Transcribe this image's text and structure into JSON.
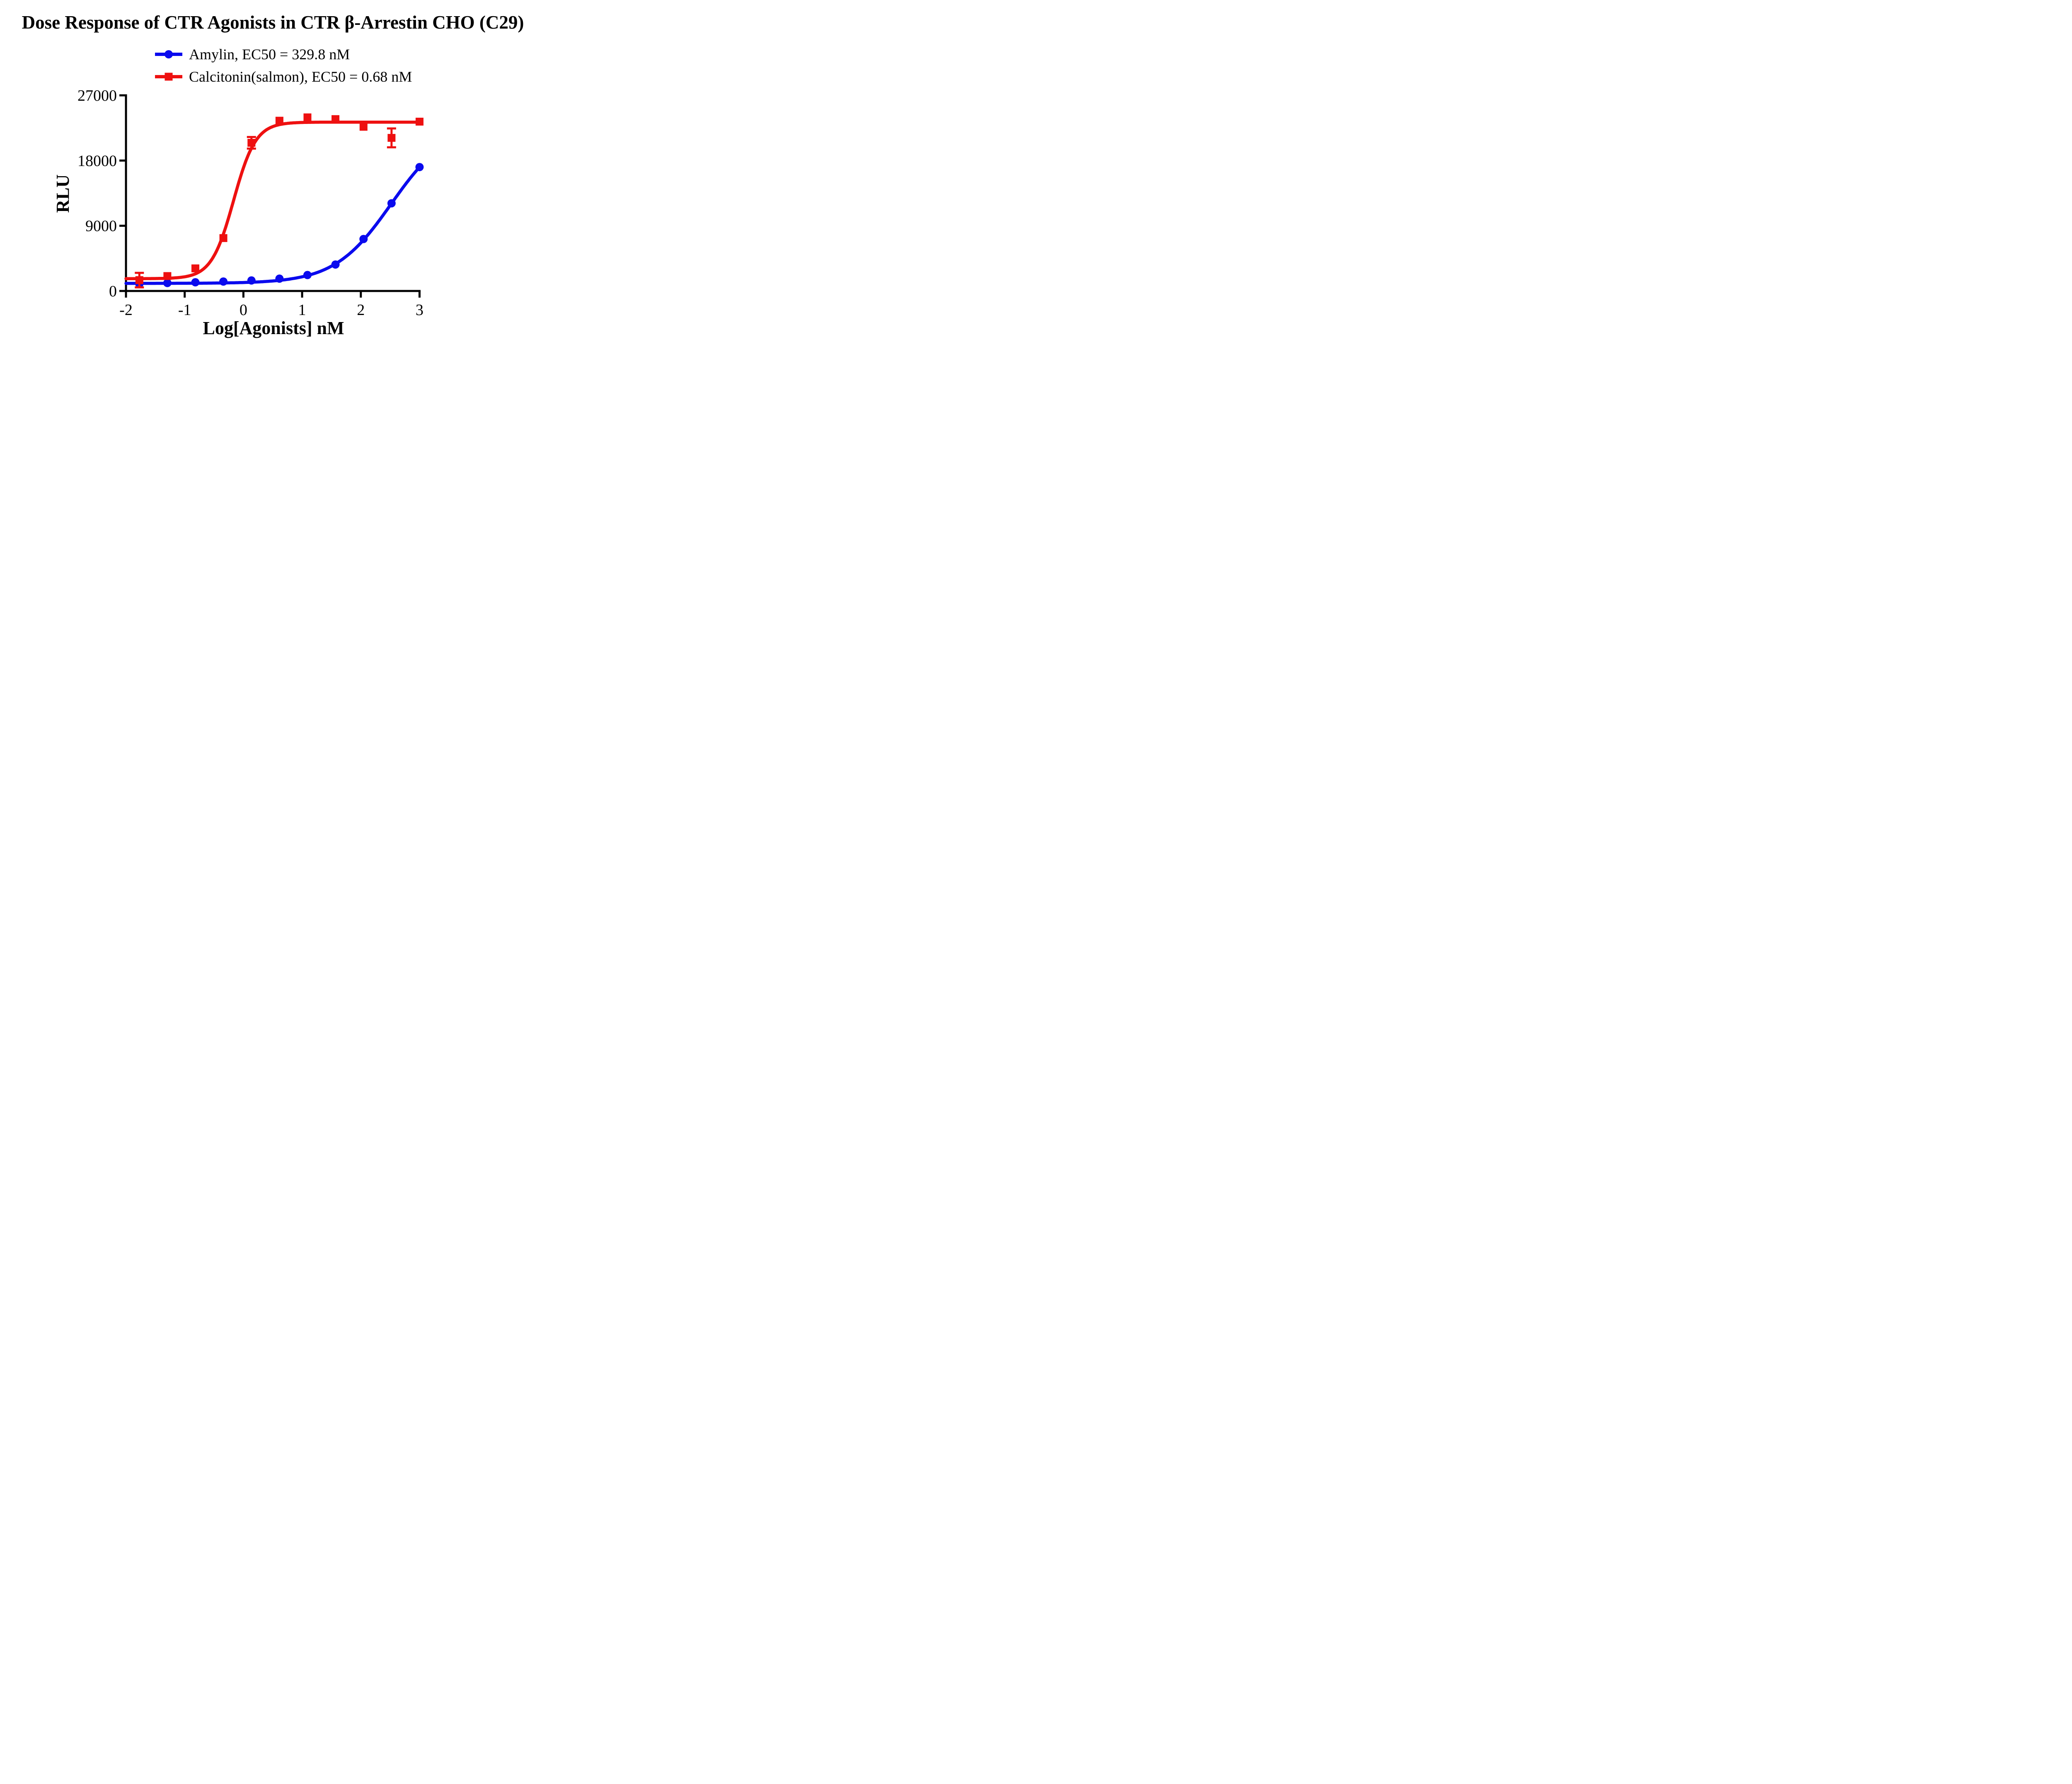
{
  "chart_data": {
    "type": "line",
    "title": "Dose Response of CTR Agonists in CTR β-Arrestin CHO (C29)",
    "xlabel": "Log[Agonists] nM",
    "ylabel": "RLU",
    "xlim": [
      -2,
      3
    ],
    "ylim": [
      0,
      27000
    ],
    "xticks": [
      "-2",
      "-1",
      "0",
      "1",
      "2",
      "3"
    ],
    "xtick_values": [
      -2,
      -1,
      0,
      1,
      2,
      3
    ],
    "yticks": [
      "0",
      "9000",
      "18000",
      "27000"
    ],
    "ytick_values": [
      0,
      9000,
      18000,
      27000
    ],
    "grid": false,
    "legend_position": "top",
    "x": [
      -1.772,
      -1.295,
      -0.818,
      -0.341,
      0.137,
      0.614,
      1.091,
      1.568,
      2.046,
      2.523,
      3.0
    ],
    "series": [
      {
        "name": "Amylin",
        "label": "Amylin, EC50 = 329.8 nM",
        "color": "#0a0aee",
        "marker": "circle",
        "values": [
          970,
          1100,
          1200,
          1300,
          1450,
          1700,
          2200,
          3650,
          7170,
          12100,
          17100
        ],
        "errors": [
          0,
          0,
          0,
          0,
          0,
          0,
          0,
          0,
          0,
          0,
          0
        ],
        "fit": {
          "bottom": 1050,
          "top": 23000,
          "logEC50": 2.518,
          "hill": 0.9
        }
      },
      {
        "name": "Calcitonin(salmon)",
        "label": "Calcitonin(salmon), EC50 = 0.68 nM",
        "color": "#ee1010",
        "marker": "square",
        "values": [
          1500,
          2060,
          3120,
          7300,
          20450,
          23500,
          23960,
          23720,
          22660,
          21130,
          23370
        ],
        "errors": [
          1000,
          0,
          0,
          0,
          800,
          0,
          0,
          0,
          0,
          1300,
          0
        ],
        "fit": {
          "bottom": 1700,
          "top": 23300,
          "logEC50": -0.167,
          "hill": 2.3
        }
      }
    ]
  }
}
